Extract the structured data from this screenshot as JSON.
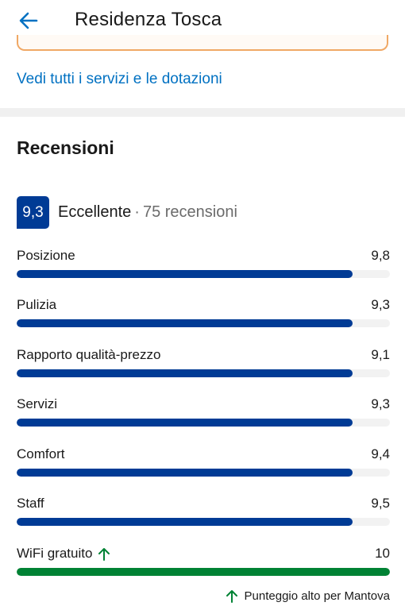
{
  "header": {
    "title": "Residenza Tosca",
    "back_icon": "arrow-left-icon"
  },
  "amenities_link": "Vedi tutti i servizi e le dotazioni",
  "reviews": {
    "section_title": "Recensioni",
    "score": "9,3",
    "score_word": "Eccellente",
    "separator": "·",
    "review_count": "75 recensioni",
    "categories": [
      {
        "label": "Posizione",
        "value": "9,8",
        "fill": 0.9
      },
      {
        "label": "Pulizia",
        "value": "9,3",
        "fill": 0.9
      },
      {
        "label": "Rapporto qualità-prezzo",
        "value": "9,1",
        "fill": 0.9
      },
      {
        "label": "Servizi",
        "value": "9,3",
        "fill": 0.9
      },
      {
        "label": "Comfort",
        "value": "9,4",
        "fill": 0.9
      },
      {
        "label": "Staff",
        "value": "9,5",
        "fill": 0.9
      },
      {
        "label": "WiFi gratuito",
        "value": "10",
        "fill": 1.0,
        "highlight": true
      }
    ],
    "highlight_note": "Punteggio alto per Mantova"
  },
  "colors": {
    "brand_blue": "#003b95",
    "link_blue": "#0071c2",
    "green": "#008234",
    "orange": "#f0a865"
  }
}
